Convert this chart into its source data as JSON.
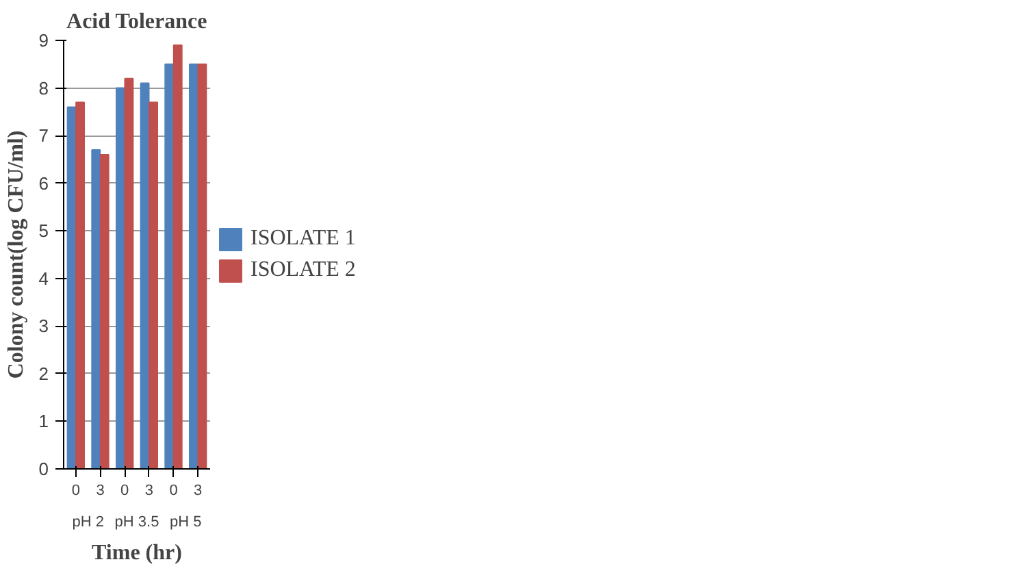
{
  "chart_data": {
    "type": "bar",
    "title": "Acid Tolerance",
    "xlabel": "Time (hr)",
    "ylabel": "Colony count(log CFU/ml)",
    "categories": [
      "0",
      "3",
      "0",
      "3",
      "0",
      "3"
    ],
    "annotations": [
      "pH 2",
      "pH 3.5",
      "pH 5"
    ],
    "series": [
      {
        "name": "ISOLATE 1",
        "color": "#4f81bd",
        "values": [
          7.6,
          6.7,
          8.0,
          8.1,
          8.5,
          8.5
        ]
      },
      {
        "name": "ISOLATE 2",
        "color": "#c0504d",
        "values": [
          7.7,
          6.6,
          8.2,
          7.7,
          8.9,
          8.5
        ]
      }
    ],
    "ylim": [
      0,
      9
    ],
    "yticks": [
      0,
      1,
      2,
      3,
      4,
      5,
      6,
      7,
      8,
      9
    ],
    "grid": "y",
    "legend": "right"
  }
}
